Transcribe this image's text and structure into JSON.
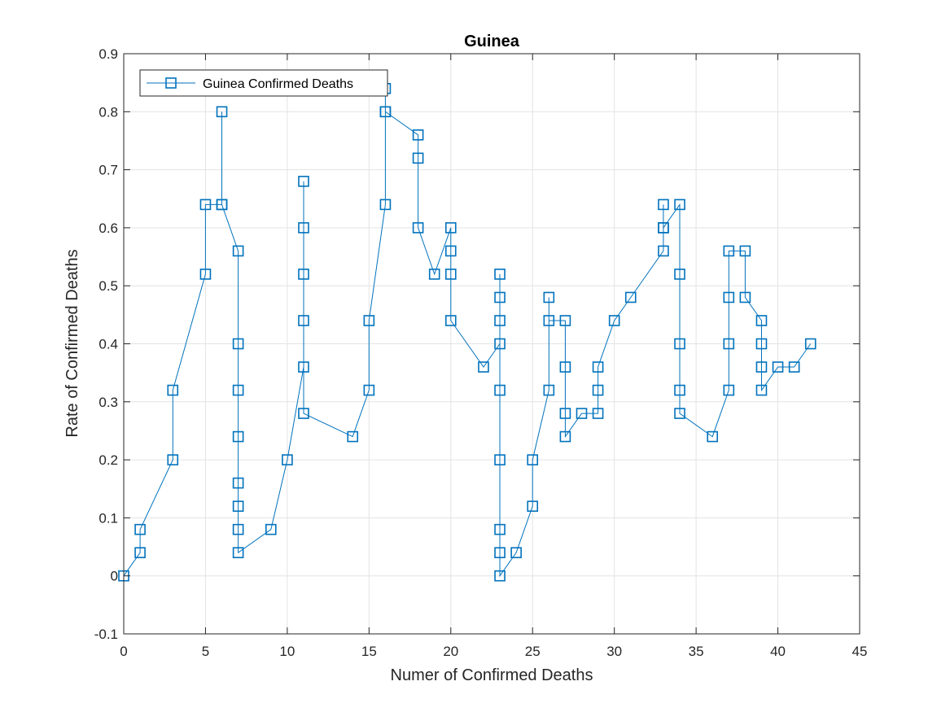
{
  "chart_data": {
    "type": "line",
    "title": "Guinea",
    "xlabel": "Numer of Confirmed Deaths",
    "ylabel": "Rate of Confirmed Deaths",
    "xlim": [
      0,
      45
    ],
    "ylim": [
      -0.1,
      0.9
    ],
    "xticks": [
      0,
      5,
      10,
      15,
      20,
      25,
      30,
      35,
      40,
      45
    ],
    "yticks": [
      -0.1,
      0,
      0.1,
      0.2,
      0.3,
      0.4,
      0.5,
      0.6,
      0.7,
      0.8,
      0.9
    ],
    "xtick_labels": [
      "0",
      "5",
      "10",
      "15",
      "20",
      "25",
      "30",
      "35",
      "40",
      "45"
    ],
    "ytick_labels": [
      "-0.1",
      "0",
      "0.1",
      "0.2",
      "0.3",
      "0.4",
      "0.5",
      "0.6",
      "0.7",
      "0.8",
      "0.9"
    ],
    "grid": true,
    "legend_position": "top-left",
    "marker": "square",
    "series_color": "#0072BD",
    "series": [
      {
        "name": "Guinea Confirmed Deaths",
        "points": [
          [
            0,
            0
          ],
          [
            1,
            0.04
          ],
          [
            1,
            0.08
          ],
          [
            3,
            0.2
          ],
          [
            3,
            0.32
          ],
          [
            5,
            0.52
          ],
          [
            5,
            0.64
          ],
          [
            6,
            0.64
          ],
          [
            6,
            0.8
          ],
          [
            6,
            0.64
          ],
          [
            7,
            0.56
          ],
          [
            7,
            0.4
          ],
          [
            7,
            0.32
          ],
          [
            7,
            0.24
          ],
          [
            7,
            0.16
          ],
          [
            7,
            0.12
          ],
          [
            7,
            0.08
          ],
          [
            7,
            0.04
          ],
          [
            9,
            0.08
          ],
          [
            10,
            0.2
          ],
          [
            11,
            0.36
          ],
          [
            11,
            0.44
          ],
          [
            11,
            0.52
          ],
          [
            11,
            0.6
          ],
          [
            11,
            0.68
          ],
          [
            11,
            0.28
          ],
          [
            14,
            0.24
          ],
          [
            15,
            0.32
          ],
          [
            15,
            0.44
          ],
          [
            16,
            0.64
          ],
          [
            16,
            0.8
          ],
          [
            16,
            0.84
          ],
          [
            16,
            0.8
          ],
          [
            18,
            0.76
          ],
          [
            18,
            0.72
          ],
          [
            18,
            0.6
          ],
          [
            19,
            0.52
          ],
          [
            20,
            0.6
          ],
          [
            20,
            0.56
          ],
          [
            20,
            0.52
          ],
          [
            20,
            0.44
          ],
          [
            22,
            0.36
          ],
          [
            23,
            0.4
          ],
          [
            23,
            0.44
          ],
          [
            23,
            0.48
          ],
          [
            23,
            0.52
          ],
          [
            23,
            0.32
          ],
          [
            23,
            0.2
          ],
          [
            23,
            0.08
          ],
          [
            23,
            0.04
          ],
          [
            23,
            0
          ],
          [
            24,
            0.04
          ],
          [
            25,
            0.12
          ],
          [
            25,
            0.2
          ],
          [
            26,
            0.32
          ],
          [
            26,
            0.48
          ],
          [
            26,
            0.44
          ],
          [
            27,
            0.44
          ],
          [
            27,
            0.36
          ],
          [
            27,
            0.28
          ],
          [
            27,
            0.24
          ],
          [
            28,
            0.28
          ],
          [
            29,
            0.28
          ],
          [
            29,
            0.32
          ],
          [
            29,
            0.36
          ],
          [
            30,
            0.44
          ],
          [
            31,
            0.48
          ],
          [
            33,
            0.56
          ],
          [
            33,
            0.6
          ],
          [
            33,
            0.64
          ],
          [
            33,
            0.6
          ],
          [
            34,
            0.64
          ],
          [
            34,
            0.52
          ],
          [
            34,
            0.4
          ],
          [
            34,
            0.32
          ],
          [
            34,
            0.28
          ],
          [
            36,
            0.24
          ],
          [
            37,
            0.32
          ],
          [
            37,
            0.4
          ],
          [
            37,
            0.48
          ],
          [
            37,
            0.56
          ],
          [
            38,
            0.56
          ],
          [
            38,
            0.48
          ],
          [
            39,
            0.44
          ],
          [
            39,
            0.4
          ],
          [
            39,
            0.36
          ],
          [
            39,
            0.32
          ],
          [
            40,
            0.36
          ],
          [
            41,
            0.36
          ],
          [
            42,
            0.4
          ]
        ]
      }
    ]
  }
}
